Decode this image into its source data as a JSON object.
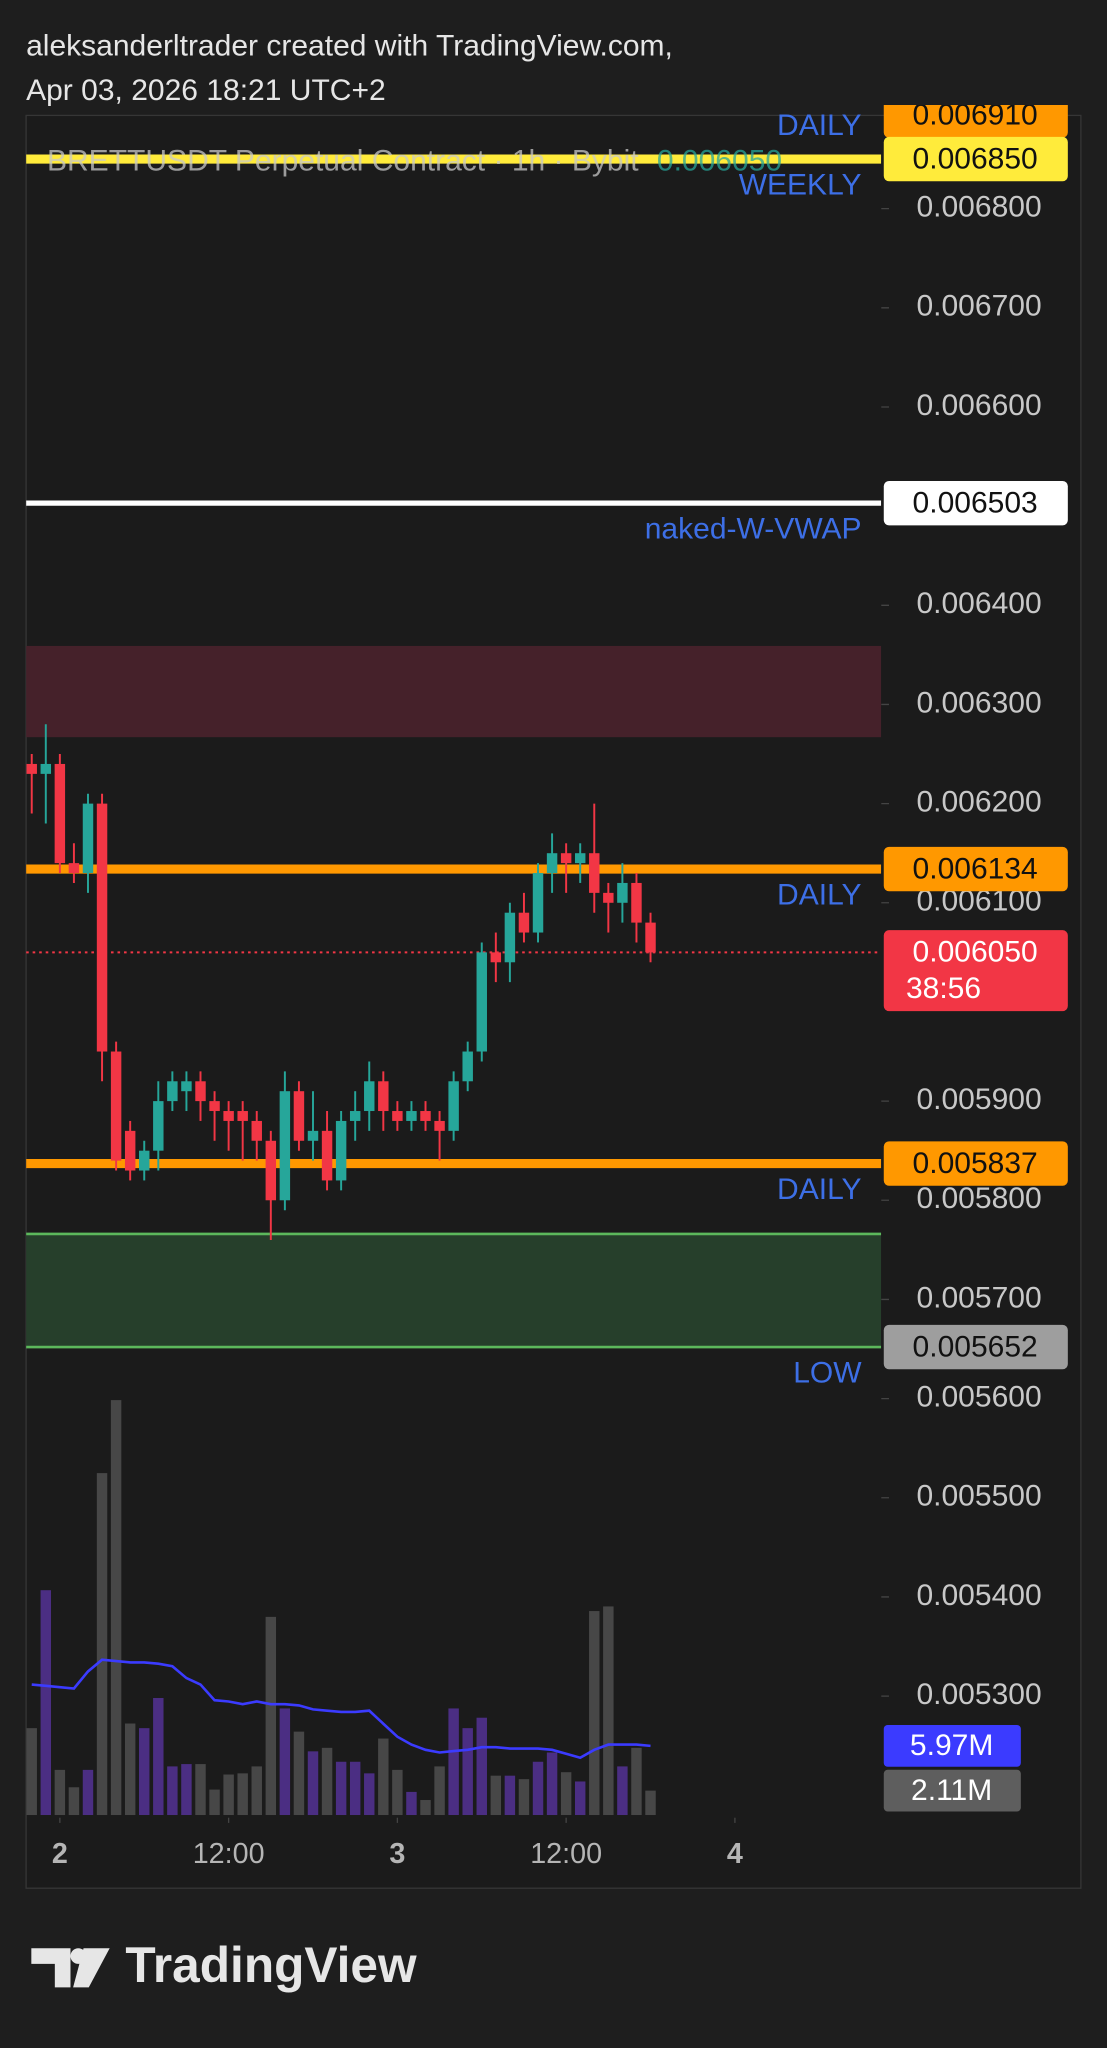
{
  "header": {
    "line1": "aleksanderltrader created with TradingView.com,",
    "line2": "Apr 03, 2026 18:21 UTC+2"
  },
  "footer": {
    "brand": "TradingView"
  },
  "chart_data": {
    "type": "candlestick",
    "symbol": "BRETTUSDT Perpetual Contract · 1h · Bybit",
    "categories": [
      null,
      null,
      null,
      null,
      null,
      null,
      null,
      null,
      null,
      null,
      null,
      null,
      null,
      null,
      null,
      null,
      null,
      null,
      null,
      null,
      null,
      null,
      null,
      null,
      null,
      null,
      null,
      null,
      null,
      null,
      null,
      null,
      null,
      null,
      null,
      null,
      null,
      null,
      null,
      null,
      null,
      null,
      null,
      null,
      null
    ],
    "xlim": [
      -0.4,
      60.4
    ],
    "xticks": [
      {
        "value": 2,
        "label": "2"
      },
      {
        "value": 14,
        "label": "12:00"
      },
      {
        "value": 26,
        "label": "3"
      },
      {
        "value": 38,
        "label": "12:00"
      },
      {
        "value": 50,
        "label": "4"
      }
    ],
    "open": [
      0.00624,
      0.00623,
      0.00624,
      0.00614,
      0.00613,
      0.0062,
      0.00595,
      0.00587,
      0.00583,
      0.00585,
      0.0059,
      0.00591,
      0.00592,
      0.0059,
      0.00589,
      0.00589,
      0.00588,
      0.00586,
      0.0058,
      0.00591,
      0.00586,
      0.00587,
      0.00582,
      0.00588,
      0.00589,
      0.00592,
      0.00589,
      0.00588,
      0.00589,
      0.00588,
      0.00587,
      0.00592,
      0.00595,
      0.00605,
      0.00604,
      0.00609,
      0.00607,
      0.00613,
      0.00615,
      0.00614,
      0.00615,
      0.00611,
      0.0061,
      0.00612,
      0.00608
    ],
    "high": [
      0.00625,
      0.00628,
      0.00625,
      0.00616,
      0.00621,
      0.00621,
      0.00596,
      0.00588,
      0.00586,
      0.00592,
      0.00593,
      0.00593,
      0.00593,
      0.00591,
      0.0059,
      0.0059,
      0.00589,
      0.00587,
      0.00593,
      0.00592,
      0.00591,
      0.00589,
      0.00589,
      0.00591,
      0.00594,
      0.00593,
      0.0059,
      0.0059,
      0.0059,
      0.00589,
      0.00593,
      0.00596,
      0.00606,
      0.00607,
      0.0061,
      0.00611,
      0.00614,
      0.00617,
      0.00616,
      0.00616,
      0.0062,
      0.00612,
      0.00614,
      0.00613,
      0.00609
    ],
    "low": [
      0.00619,
      0.00618,
      0.00613,
      0.00612,
      0.00611,
      0.00592,
      0.00583,
      0.00582,
      0.00582,
      0.00583,
      0.00589,
      0.00589,
      0.00588,
      0.00586,
      0.00585,
      0.00584,
      0.00584,
      0.00576,
      0.00579,
      0.00585,
      0.00584,
      0.00581,
      0.00581,
      0.00586,
      0.00587,
      0.00587,
      0.00587,
      0.00587,
      0.00587,
      0.00584,
      0.00586,
      0.00591,
      0.00594,
      0.00602,
      0.00602,
      0.00606,
      0.00606,
      0.00611,
      0.00611,
      0.00612,
      0.00609,
      0.00607,
      0.00608,
      0.00606,
      0.00604
    ],
    "close": [
      0.00623,
      0.00624,
      0.00614,
      0.00613,
      0.0062,
      0.00595,
      0.00584,
      0.00583,
      0.00585,
      0.0059,
      0.00592,
      0.00592,
      0.0059,
      0.00589,
      0.00588,
      0.00588,
      0.00586,
      0.0058,
      0.00591,
      0.00586,
      0.00587,
      0.00582,
      0.00588,
      0.00589,
      0.00592,
      0.00589,
      0.00588,
      0.00589,
      0.00588,
      0.00587,
      0.00592,
      0.00595,
      0.00605,
      0.00604,
      0.00609,
      0.00607,
      0.00613,
      0.00615,
      0.00614,
      0.00615,
      0.00611,
      0.0061,
      0.00612,
      0.00608,
      0.00605
    ],
    "up_color": "#26a69a",
    "down_color": "#f23645",
    "ylim": [
      0.00518,
      0.006894
    ],
    "yticks": [
      {
        "value": 0.0068,
        "label": "0.006800"
      },
      {
        "value": 0.0067,
        "label": "0.006700"
      },
      {
        "value": 0.0066,
        "label": "0.006600"
      },
      {
        "value": 0.0064,
        "label": "0.006400"
      },
      {
        "value": 0.0063,
        "label": "0.006300"
      },
      {
        "value": 0.0062,
        "label": "0.006200"
      },
      {
        "value": 0.0061,
        "label": "0.006100"
      },
      {
        "value": 0.0059,
        "label": "0.005900"
      },
      {
        "value": 0.0058,
        "label": "0.005800"
      },
      {
        "value": 0.0057,
        "label": "0.005700"
      },
      {
        "value": 0.0056,
        "label": "0.005600"
      },
      {
        "value": 0.0055,
        "label": "0.005500"
      },
      {
        "value": 0.0054,
        "label": "0.005400"
      },
      {
        "value": 0.0053,
        "label": "0.005300"
      }
    ],
    "zones": [
      {
        "from": 0.006267,
        "to": 0.006359,
        "color": "#45212a"
      },
      {
        "from": 0.005652,
        "to": 0.005766,
        "color": "#263f2b",
        "border": "#5cb85c"
      }
    ],
    "levels": [
      {
        "value": 0.00691,
        "label": "0.006910",
        "color": "#ff9800",
        "tag": "DAILY"
      },
      {
        "value": 0.00685,
        "label": "0.006850",
        "color": "#ffeb3b",
        "tag": "WEEKLY"
      },
      {
        "value": 0.006503,
        "label": "0.006503",
        "color": "#ffffff",
        "tag": "naked-W-VWAP"
      },
      {
        "value": 0.006134,
        "label": "0.006134",
        "color": "#ff9800",
        "tag": "DAILY"
      },
      {
        "value": 0.005837,
        "label": "0.005837",
        "color": "#ff9800",
        "tag": "DAILY"
      },
      {
        "value": 0.005652,
        "label": "0.005652",
        "color": "#9e9e9e",
        "line_color": "#5cb85c",
        "tag": "LOW"
      }
    ],
    "tag_color": "#3d6fe6",
    "last_price": {
      "value": 0.00605,
      "label": "0.006050",
      "countdown": "38:56",
      "color": "#f23645"
    },
    "volume": {
      "values": [
        7.5,
        19.4,
        3.9,
        2.4,
        3.9,
        29.5,
        35.8,
        7.9,
        7.5,
        10.1,
        4.2,
        4.4,
        4.4,
        2.2,
        3.5,
        3.6,
        4.2,
        17.1,
        9.2,
        7.2,
        5.5,
        5.8,
        4.6,
        4.6,
        3.6,
        6.6,
        3.9,
        2.0,
        1.3,
        4.2,
        9.2,
        7.5,
        8.4,
        3.4,
        3.4,
        3.1,
        4.6,
        5.4,
        3.7,
        2.9,
        17.6,
        18.0,
        4.2,
        5.8,
        2.11
      ],
      "last_label": "2.11M",
      "vlim": [
        0,
        37.5
      ],
      "up_color": "#4b2e83",
      "down_color": "#474747",
      "label_color": "#5e5e5e"
    },
    "volume_ma": {
      "values": [
        11.26,
        11.15,
        11.03,
        10.92,
        12.39,
        13.4,
        13.29,
        13.17,
        13.17,
        13.06,
        12.84,
        11.82,
        11.26,
        9.91,
        9.8,
        9.57,
        9.8,
        9.57,
        9.57,
        9.46,
        9.12,
        9.01,
        8.9,
        8.9,
        9.01,
        7.88,
        6.76,
        6.08,
        5.63,
        5.4,
        5.52,
        5.63,
        5.86,
        5.86,
        5.74,
        5.74,
        5.74,
        5.63,
        5.29,
        4.95,
        5.63,
        6.08,
        6.08,
        6.08,
        5.97
      ],
      "color": "#3b3bff",
      "last_label": "5.97M"
    }
  }
}
